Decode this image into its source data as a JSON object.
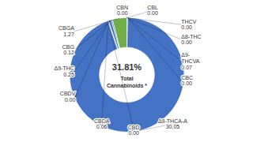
{
  "chart_data": {
    "type": "donut",
    "title": "31.81%",
    "subtitle": "Total\nCannabinoids *",
    "categories": [
      "CBN",
      "CBL",
      "THCV",
      "Δ8-THC",
      "Δ9-\nTHCVA",
      "CBC",
      "Δ9-THCA-A",
      "CBD",
      "CBDA",
      "CBDV",
      "Δ9-THC",
      "CBG",
      "CBGA"
    ],
    "values": [
      0.0,
      0.0,
      0.0,
      0.0,
      0.07,
      0.0,
      30.05,
      0.0,
      0.06,
      0.0,
      0.25,
      0.12,
      1.27
    ],
    "value_labels": [
      "0.00",
      "0.00",
      "0.00",
      "0.00",
      "0.07",
      "0.00",
      "30.05",
      "0.00",
      "0.06",
      "0.00",
      "0.25",
      "0.12",
      "1.27"
    ],
    "colors": [
      "#70AD47",
      "#70AD47",
      "#4472C4",
      "#4472C4",
      "#4472C4",
      "#4472C4",
      "#4472C4",
      "#4472C4",
      "#4472C4",
      "#4472C4",
      "#4472C4",
      "#4472C4",
      "#70AD47"
    ],
    "data_labels": true
  }
}
